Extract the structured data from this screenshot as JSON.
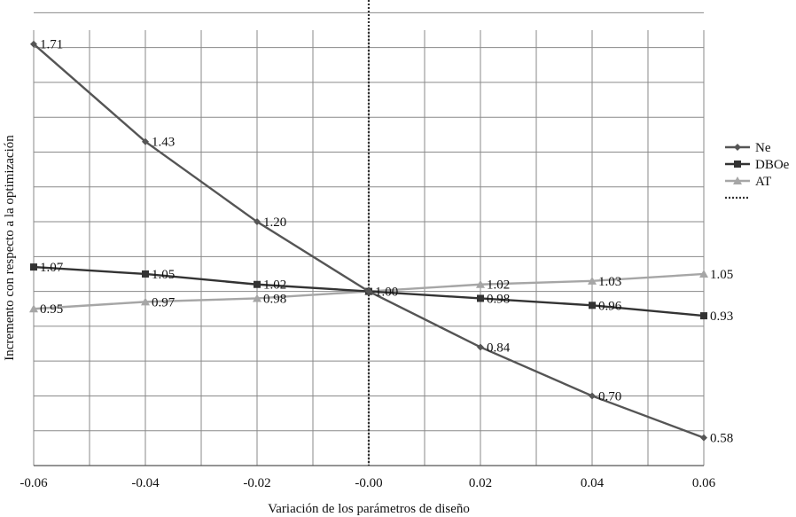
{
  "chart_data": {
    "type": "line",
    "xlabel": "Variación de los parámetros de diseño",
    "ylabel": "Incremento con respecto a la optimización",
    "x": [
      -0.06,
      -0.04,
      -0.02,
      0.0,
      0.02,
      0.04,
      0.06
    ],
    "x_tick_labels": [
      "-0.06",
      "-0.04",
      "-0.02",
      "-0.00",
      "0.02",
      "0.04",
      "0.06"
    ],
    "ylim": [
      0.5,
      1.75
    ],
    "y_grid_step": 0.1,
    "grid": true,
    "legend_position": "right",
    "series": [
      {
        "name": "Ne",
        "color": "#555555",
        "marker": "diamond",
        "values": [
          1.71,
          1.43,
          1.2,
          1.0,
          0.84,
          0.7,
          0.58
        ],
        "labels": [
          "1.71",
          "1.43",
          "1.20",
          "1.00",
          "0.84",
          "0.70",
          "0.58"
        ]
      },
      {
        "name": "DBOe",
        "color": "#333333",
        "marker": "square",
        "values": [
          1.07,
          1.05,
          1.02,
          1.0,
          0.98,
          0.96,
          0.93
        ],
        "labels": [
          "1.07",
          "1.05",
          "1.02",
          "",
          "0.98",
          "0.96",
          "0.93"
        ]
      },
      {
        "name": "AT",
        "color": "#a6a6a6",
        "marker": "triangle",
        "values": [
          0.95,
          0.97,
          0.98,
          1.0,
          1.02,
          1.03,
          1.05
        ],
        "labels": [
          "0.95",
          "0.97",
          "0.98",
          "",
          "1.02",
          "1.03",
          "1.05"
        ]
      }
    ],
    "reference_line": {
      "x": 0.0,
      "style": "dotted",
      "color": "#333333",
      "legend_label": ""
    }
  }
}
